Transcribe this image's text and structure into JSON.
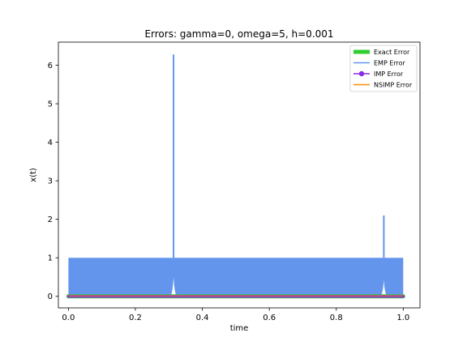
{
  "chart_data": {
    "type": "line",
    "title": "Errors: gamma=0, omega=5, h=0.001",
    "xlabel": "time",
    "ylabel": "x(t)",
    "xlim": [
      -0.03,
      1.05
    ],
    "ylim": [
      -0.3,
      6.6
    ],
    "xticks": [
      0.0,
      0.2,
      0.4,
      0.6,
      0.8,
      1.0
    ],
    "xtick_labels": [
      "0.0",
      "0.2",
      "0.4",
      "0.6",
      "0.8",
      "1.0"
    ],
    "yticks": [
      0,
      1,
      2,
      3,
      4,
      5,
      6
    ],
    "ytick_labels": [
      "0",
      "1",
      "2",
      "3",
      "4",
      "5",
      "6"
    ],
    "grid": false,
    "legend_position": "top-right",
    "series": [
      {
        "name": "Exact Error",
        "color": "#32cd32",
        "style": "thick-line",
        "x": [
          0.0,
          1.0
        ],
        "y": [
          0.0,
          0.0
        ]
      },
      {
        "name": "EMP Error",
        "color": "#6495ed",
        "style": "band-line",
        "x_range": [
          0.0,
          1.0
        ],
        "band": [
          0.0,
          1.0
        ],
        "spikes": [
          {
            "x": 0.314,
            "y": 6.28
          },
          {
            "x": 0.942,
            "y": 2.1
          }
        ],
        "notches": [
          {
            "x": 0.314,
            "y": 0.5
          },
          {
            "x": 0.942,
            "y": 0.42
          }
        ]
      },
      {
        "name": "IMP Error",
        "color": "#8a2be2",
        "style": "line-marker",
        "x": [
          0.0,
          1.0
        ],
        "y": [
          0.0,
          0.0
        ]
      },
      {
        "name": "NSIMP Error",
        "color": "#ff8c00",
        "style": "line",
        "x": [
          0.0,
          1.0
        ],
        "y": [
          0.0,
          0.0
        ]
      }
    ]
  }
}
